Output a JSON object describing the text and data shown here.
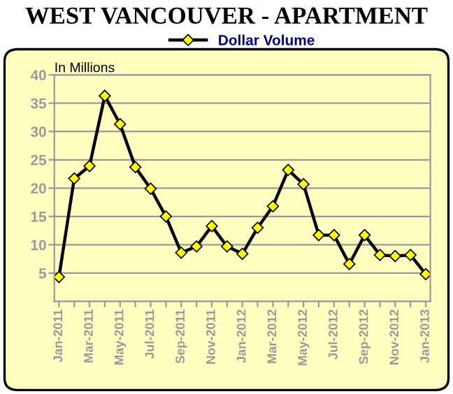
{
  "chart_data": {
    "type": "line",
    "title": "WEST VANCOUVER - APARTMENT",
    "ylabel": "In Millions",
    "categories": [
      "Jan-2011",
      null,
      "Mar-2011",
      null,
      "May-2011",
      null,
      "Jul-2011",
      null,
      "Sep-2011",
      null,
      "Nov-2011",
      null,
      "Jan-2012",
      null,
      "Mar-2012",
      null,
      "May-2012",
      null,
      "Jul-2012",
      null,
      "Sep-2012",
      null,
      "Nov-2012",
      null,
      "Jan-2013"
    ],
    "series": [
      {
        "name": "Dollar Volume",
        "color": "#000000",
        "values": [
          4.3,
          21.7,
          23.9,
          36.3,
          31.3,
          23.7,
          19.9,
          15,
          8.6,
          9.7,
          13.3,
          9.7,
          8.4,
          13,
          16.8,
          23.2,
          20.7,
          11.7,
          11.7,
          6.6,
          11.7,
          8.2,
          8.0,
          8.2,
          4.8
        ]
      }
    ],
    "ylim": [
      0,
      40
    ],
    "yticks": [
      5,
      10,
      15,
      20,
      25,
      30,
      35,
      40
    ],
    "grid": "y",
    "legend": "top",
    "marker": "diamond",
    "line_style": "solid"
  }
}
